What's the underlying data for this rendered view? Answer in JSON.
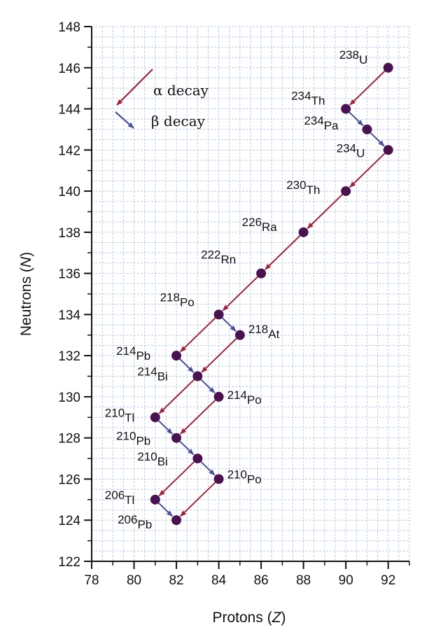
{
  "chart_data": {
    "type": "scatter",
    "title": "",
    "xlabel": "Protons (Z)",
    "ylabel": "Neutrons (N)",
    "xlabel_parts": {
      "text": "Protons (",
      "var": "Z",
      "close": ")"
    },
    "ylabel_parts": {
      "text": "Neutrons (",
      "var": "N",
      "close": ")"
    },
    "xlim": [
      78,
      93
    ],
    "ylim": [
      122,
      148
    ],
    "xticks": [
      78,
      80,
      82,
      84,
      86,
      88,
      90,
      92
    ],
    "yticks": [
      122,
      124,
      126,
      128,
      130,
      132,
      134,
      136,
      138,
      140,
      142,
      144,
      146,
      148
    ],
    "grid": true,
    "legend": {
      "placement": "top-left",
      "entries": [
        {
          "label": "α decay",
          "color": "#a0233a"
        },
        {
          "label": "β decay",
          "color": "#4b4f9b"
        }
      ]
    },
    "colors": {
      "alpha": "#a0233a",
      "beta": "#4b4f9b",
      "point": "#4a1250",
      "grid": "#b8cbe6"
    },
    "points": [
      {
        "mass": "238",
        "symbol": "U",
        "z": 92,
        "n": 146
      },
      {
        "mass": "234",
        "symbol": "Th",
        "z": 90,
        "n": 144
      },
      {
        "mass": "234",
        "symbol": "Pa",
        "z": 91,
        "n": 143
      },
      {
        "mass": "234",
        "symbol": "U",
        "z": 92,
        "n": 142
      },
      {
        "mass": "230",
        "symbol": "Th",
        "z": 90,
        "n": 140
      },
      {
        "mass": "226",
        "symbol": "Ra",
        "z": 88,
        "n": 138
      },
      {
        "mass": "222",
        "symbol": "Rn",
        "z": 86,
        "n": 136
      },
      {
        "mass": "218",
        "symbol": "Po",
        "z": 84,
        "n": 134
      },
      {
        "mass": "218",
        "symbol": "At",
        "z": 85,
        "n": 133
      },
      {
        "mass": "214",
        "symbol": "Pb",
        "z": 82,
        "n": 132
      },
      {
        "mass": "214",
        "symbol": "Bi",
        "z": 83,
        "n": 131
      },
      {
        "mass": "214",
        "symbol": "Po",
        "z": 84,
        "n": 130
      },
      {
        "mass": "210",
        "symbol": "Tl",
        "z": 81,
        "n": 129
      },
      {
        "mass": "210",
        "symbol": "Pb",
        "z": 82,
        "n": 128
      },
      {
        "mass": "210",
        "symbol": "Bi",
        "z": 83,
        "n": 127
      },
      {
        "mass": "210",
        "symbol": "Po",
        "z": 84,
        "n": 126
      },
      {
        "mass": "206",
        "symbol": "Tl",
        "z": 81,
        "n": 125
      },
      {
        "mass": "206",
        "symbol": "Pb",
        "z": 82,
        "n": 124
      }
    ],
    "transitions": [
      {
        "type": "alpha",
        "from": [
          92,
          146
        ],
        "to": [
          90,
          144
        ]
      },
      {
        "type": "beta",
        "from": [
          90,
          144
        ],
        "to": [
          91,
          143
        ]
      },
      {
        "type": "beta",
        "from": [
          91,
          143
        ],
        "to": [
          92,
          142
        ]
      },
      {
        "type": "alpha",
        "from": [
          92,
          142
        ],
        "to": [
          90,
          140
        ]
      },
      {
        "type": "alpha",
        "from": [
          90,
          140
        ],
        "to": [
          88,
          138
        ]
      },
      {
        "type": "alpha",
        "from": [
          88,
          138
        ],
        "to": [
          86,
          136
        ]
      },
      {
        "type": "alpha",
        "from": [
          86,
          136
        ],
        "to": [
          84,
          134
        ]
      },
      {
        "type": "alpha",
        "from": [
          84,
          134
        ],
        "to": [
          82,
          132
        ]
      },
      {
        "type": "beta",
        "from": [
          84,
          134
        ],
        "to": [
          85,
          133
        ]
      },
      {
        "type": "alpha",
        "from": [
          85,
          133
        ],
        "to": [
          83,
          131
        ]
      },
      {
        "type": "beta",
        "from": [
          82,
          132
        ],
        "to": [
          83,
          131
        ]
      },
      {
        "type": "alpha",
        "from": [
          83,
          131
        ],
        "to": [
          81,
          129
        ]
      },
      {
        "type": "beta",
        "from": [
          83,
          131
        ],
        "to": [
          84,
          130
        ]
      },
      {
        "type": "alpha",
        "from": [
          84,
          130
        ],
        "to": [
          82,
          128
        ]
      },
      {
        "type": "beta",
        "from": [
          81,
          129
        ],
        "to": [
          82,
          128
        ]
      },
      {
        "type": "beta",
        "from": [
          82,
          128
        ],
        "to": [
          83,
          127
        ]
      },
      {
        "type": "alpha",
        "from": [
          83,
          127
        ],
        "to": [
          81,
          125
        ]
      },
      {
        "type": "beta",
        "from": [
          83,
          127
        ],
        "to": [
          84,
          126
        ]
      },
      {
        "type": "alpha",
        "from": [
          84,
          126
        ],
        "to": [
          82,
          124
        ]
      },
      {
        "type": "beta",
        "from": [
          81,
          125
        ],
        "to": [
          82,
          124
        ]
      }
    ]
  }
}
